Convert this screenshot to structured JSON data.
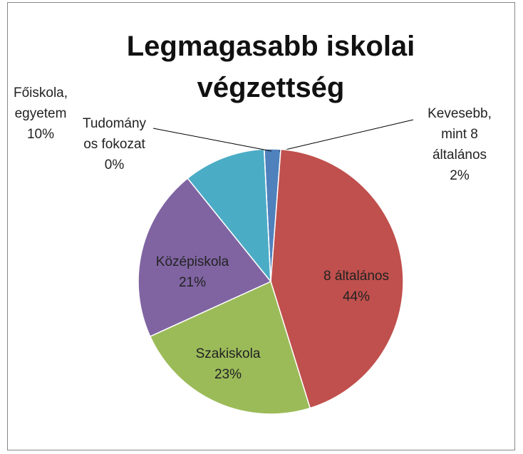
{
  "chart_data": {
    "type": "pie",
    "title": "Legmagasabb iskolai végzettség",
    "categories": [
      "Kevesebb, mint 8 általános",
      "8 általános",
      "Szakiskola",
      "Középiskola",
      "Főiskola, egyetem",
      "Tudományos fokozat"
    ],
    "values": [
      2,
      44,
      23,
      21,
      10,
      0
    ],
    "value_labels": [
      "2%",
      "44%",
      "23%",
      "21%",
      "10%",
      "0%"
    ],
    "colors": [
      "#4f81bd",
      "#c0504d",
      "#9bbb59",
      "#8064a2",
      "#4bacc6",
      "#f79646"
    ]
  }
}
